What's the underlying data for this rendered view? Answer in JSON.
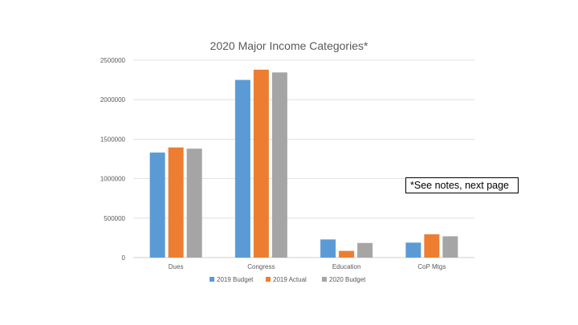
{
  "chart_data": {
    "type": "bar",
    "title": "2020 Major Income Categories*",
    "categories": [
      "Dues",
      "Congress",
      "Education",
      "CoP Mtgs"
    ],
    "series": [
      {
        "name": "2019 Budget",
        "values": [
          1330000,
          2250000,
          230000,
          190000
        ]
      },
      {
        "name": "2019 Actual",
        "values": [
          1395000,
          2380000,
          85000,
          295000
        ]
      },
      {
        "name": "2020 Budget",
        "values": [
          1380000,
          2345000,
          185000,
          270000
        ]
      }
    ],
    "ylim": [
      0,
      2500000
    ],
    "yticks": [
      "0",
      "500000",
      "1000000",
      "1500000",
      "2000000",
      "2500000"
    ],
    "xlabel": "",
    "ylabel": "",
    "grid": true,
    "legend_position": "bottom"
  },
  "colors": {
    "series": [
      "#5b9bd5",
      "#ed7d31",
      "#a5a5a5"
    ],
    "grid": "#d9d9d9",
    "axis": "#bfbfbf",
    "text": "#595959"
  },
  "note": {
    "text": "*See notes, next page"
  }
}
